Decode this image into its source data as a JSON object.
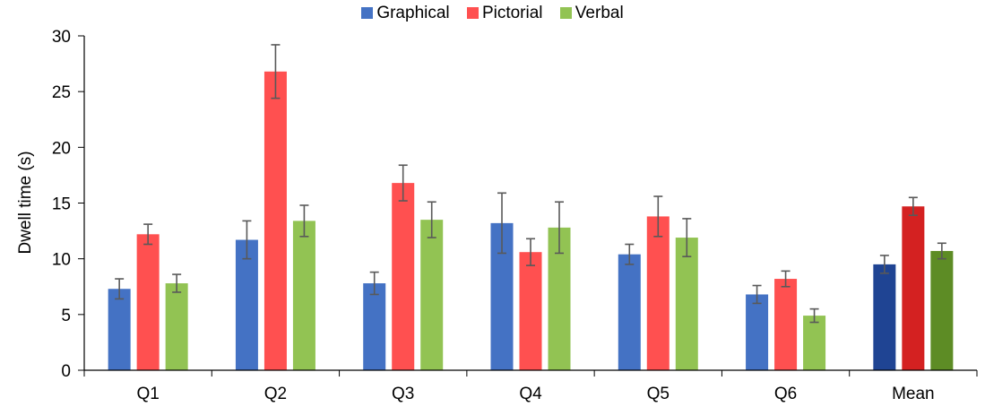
{
  "chart_data": {
    "type": "bar",
    "title": "",
    "xlabel": "",
    "ylabel": "Dwell time (s)",
    "ylim": [
      0,
      30
    ],
    "yticks": [
      "0",
      "5",
      "10",
      "15",
      "20",
      "25",
      "30"
    ],
    "grid": false,
    "legend_position": "top-center",
    "categories": [
      "Q1",
      "Q2",
      "Q3",
      "Q4",
      "Q5",
      "Q6",
      "Mean"
    ],
    "series": [
      {
        "name": "Graphical",
        "color": "#4472C4",
        "values": [
          7.3,
          11.7,
          7.8,
          13.2,
          10.4,
          6.8,
          9.5
        ],
        "errors": [
          0.9,
          1.7,
          1.0,
          2.7,
          0.9,
          0.8,
          0.8
        ]
      },
      {
        "name": "Pictorial",
        "color": "#FF5050",
        "values": [
          12.2,
          26.8,
          16.8,
          10.6,
          13.8,
          8.2,
          14.7
        ],
        "errors": [
          0.9,
          2.4,
          1.6,
          1.2,
          1.8,
          0.7,
          0.8
        ]
      },
      {
        "name": "Verbal",
        "color": "#92C353",
        "values": [
          7.8,
          13.4,
          13.5,
          12.8,
          11.9,
          4.9,
          10.7
        ],
        "errors": [
          0.8,
          1.4,
          1.6,
          2.3,
          1.7,
          0.6,
          0.7
        ]
      }
    ],
    "highlight_category": "Mean",
    "highlight_colors": [
      "#1F4493",
      "#D42121",
      "#5D8C25"
    ],
    "errorbar_color": "#595959"
  }
}
